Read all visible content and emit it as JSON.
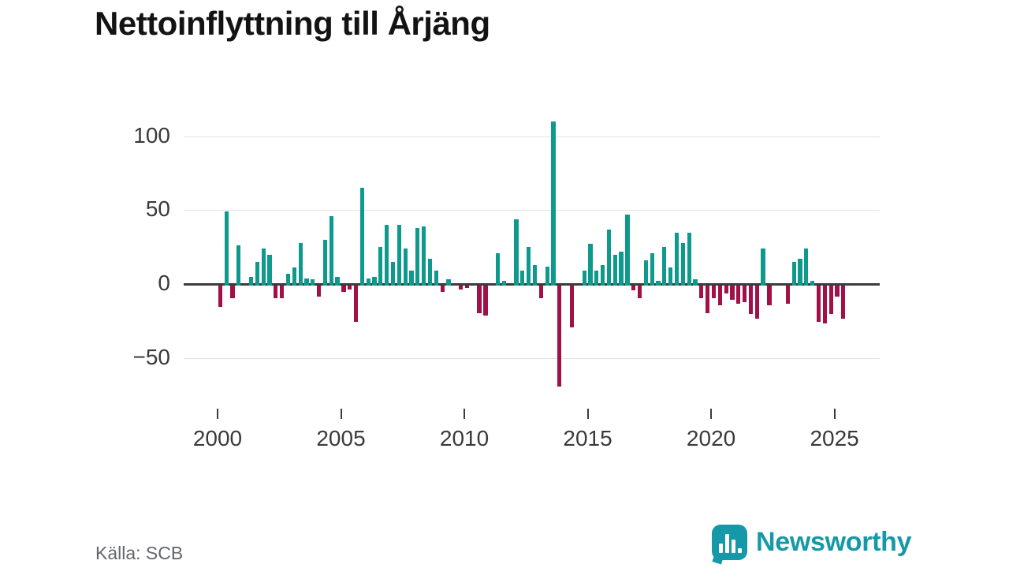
{
  "title": "Nettoinflyttning till Årjäng",
  "source": "Källa: SCB",
  "brand": {
    "name": "Newsworthy",
    "color": "#1599a8"
  },
  "chart_data": {
    "type": "bar",
    "title": "Nettoinflyttning till Årjäng",
    "frequency": "quarterly",
    "x_start": "2000-Q1",
    "x_end": "2025-Q2",
    "xlabel": "",
    "ylabel": "",
    "ylim": [
      -75,
      115
    ],
    "grid": true,
    "positive_color": "#0d9a8d",
    "negative_color": "#a21048",
    "y_ticks": [
      {
        "value": 100,
        "label": "100"
      },
      {
        "value": 50,
        "label": "50"
      },
      {
        "value": 0,
        "label": "0"
      },
      {
        "value": -50,
        "label": "−50"
      }
    ],
    "x_ticks": [
      {
        "value": 2000,
        "label": "2000"
      },
      {
        "value": 2005,
        "label": "2005"
      },
      {
        "value": 2010,
        "label": "2010"
      },
      {
        "value": 2015,
        "label": "2015"
      },
      {
        "value": 2020,
        "label": "2020"
      },
      {
        "value": 2025,
        "label": "2025"
      }
    ],
    "values": [
      -15,
      49,
      -9,
      26,
      0,
      5,
      15,
      24,
      20,
      -9,
      -9,
      7,
      11,
      28,
      4,
      3,
      -8,
      30,
      46,
      5,
      -5,
      -3,
      -25,
      65,
      4,
      5,
      25,
      40,
      15,
      40,
      24,
      9,
      38,
      39,
      17,
      9,
      -5,
      3,
      0,
      -3,
      -2,
      0,
      -19,
      -21,
      0,
      21,
      2,
      0,
      44,
      9,
      25,
      13,
      -9,
      12,
      110,
      -69,
      0,
      -29,
      0,
      9,
      27,
      9,
      13,
      37,
      20,
      22,
      47,
      -4,
      -9,
      16,
      21,
      2,
      25,
      11,
      35,
      28,
      35,
      3,
      -9,
      -19,
      -9,
      -14,
      -6,
      -10,
      -13,
      -12,
      -20,
      -23,
      24,
      -14,
      0,
      0,
      -13,
      15,
      17,
      24,
      2,
      -25,
      -26,
      -20,
      -8,
      -23
    ]
  }
}
